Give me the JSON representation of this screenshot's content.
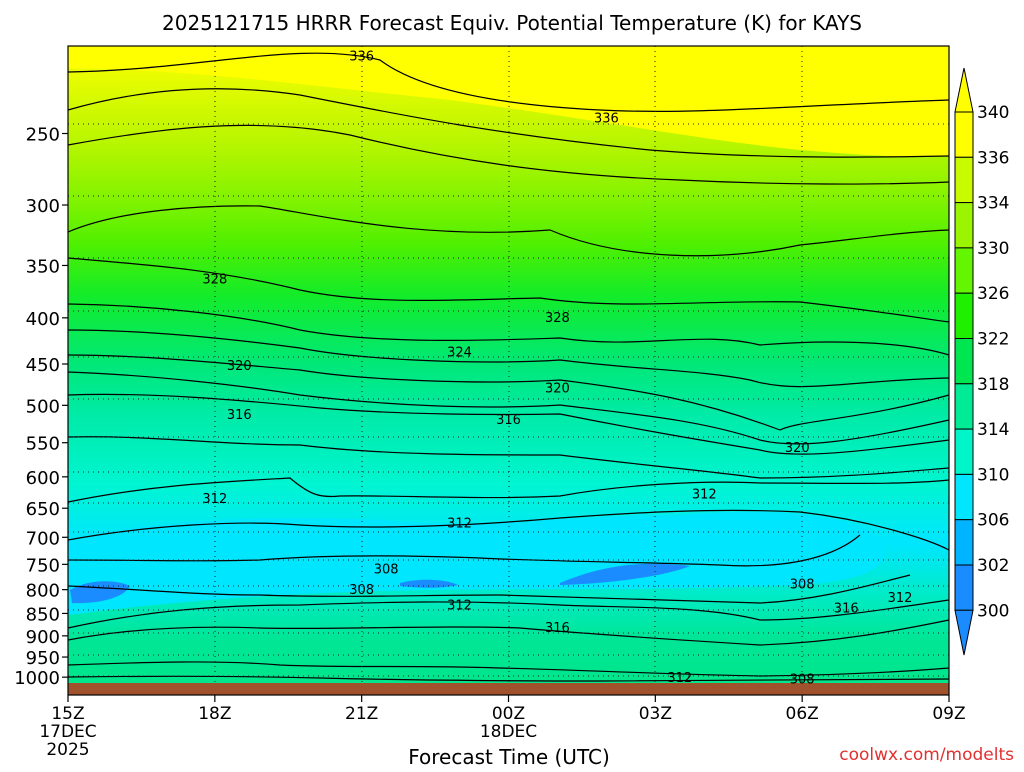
{
  "chart_data": {
    "type": "contour",
    "title": "2025121715 HRRR Forecast Equiv. Potential Temperature (K) for KAYS",
    "xlabel": "Forecast Time (UTC)",
    "ylabel": "",
    "credit": "coolwx.com/modelts",
    "x_ticks": [
      {
        "hour": 0,
        "label": "15Z",
        "sub1": "17DEC",
        "sub2": "2025"
      },
      {
        "hour": 3,
        "label": "18Z"
      },
      {
        "hour": 6,
        "label": "21Z"
      },
      {
        "hour": 9,
        "label": "00Z",
        "sub1": "18DEC"
      },
      {
        "hour": 12,
        "label": "03Z"
      },
      {
        "hour": 15,
        "label": "06Z"
      },
      {
        "hour": 18,
        "label": "09Z"
      }
    ],
    "xlim": [
      0,
      18
    ],
    "ylim": [
      1015,
      200
    ],
    "y_ticks": [
      250,
      300,
      350,
      400,
      450,
      500,
      550,
      600,
      650,
      700,
      750,
      800,
      850,
      900,
      950,
      1000
    ],
    "y_tick_labels": [
      "250",
      "300",
      "350",
      "400",
      "450",
      "500",
      "550",
      "600",
      "650",
      "700",
      "750",
      "800",
      "850",
      "900",
      "950",
      "1000"
    ],
    "colorbar": {
      "levels": [
        300,
        302,
        306,
        310,
        314,
        318,
        322,
        326,
        330,
        334,
        336,
        340
      ],
      "labels": [
        "300",
        "302",
        "306",
        "310",
        "314",
        "318",
        "322",
        "326",
        "330",
        "334",
        "336",
        "340"
      ],
      "colors": [
        "#1a8cff",
        "#00b4ff",
        "#00e6ff",
        "#00f5c8",
        "#00eb96",
        "#00e650",
        "#1ef000",
        "#64f500",
        "#9bf500",
        "#c8fa00",
        "#ffff00",
        "#ffff00"
      ]
    },
    "contour_labels": [
      {
        "text": "336",
        "hour": 6.0,
        "p": 205
      },
      {
        "text": "336",
        "hour": 11.0,
        "p": 240
      },
      {
        "text": "328",
        "hour": 3.0,
        "p": 362
      },
      {
        "text": "328",
        "hour": 10.0,
        "p": 399
      },
      {
        "text": "324",
        "hour": 8.0,
        "p": 436
      },
      {
        "text": "320",
        "hour": 3.5,
        "p": 451
      },
      {
        "text": "320",
        "hour": 10.0,
        "p": 478
      },
      {
        "text": "316",
        "hour": 3.5,
        "p": 511
      },
      {
        "text": "316",
        "hour": 9.0,
        "p": 518
      },
      {
        "text": "320",
        "hour": 14.9,
        "p": 556
      },
      {
        "text": "312",
        "hour": 3.0,
        "p": 633
      },
      {
        "text": "312",
        "hour": 13.0,
        "p": 626
      },
      {
        "text": "312",
        "hour": 8.0,
        "p": 674
      },
      {
        "text": "308",
        "hour": 6.5,
        "p": 758
      },
      {
        "text": "308",
        "hour": 6.0,
        "p": 799
      },
      {
        "text": "308",
        "hour": 15.0,
        "p": 788
      },
      {
        "text": "312",
        "hour": 8.0,
        "p": 831
      },
      {
        "text": "316",
        "hour": 15.9,
        "p": 837
      },
      {
        "text": "312",
        "hour": 17.0,
        "p": 815
      },
      {
        "text": "316",
        "hour": 10.0,
        "p": 880
      },
      {
        "text": "312",
        "hour": 12.5,
        "p": 1000
      },
      {
        "text": "308",
        "hour": 15.0,
        "p": 1004
      }
    ]
  }
}
